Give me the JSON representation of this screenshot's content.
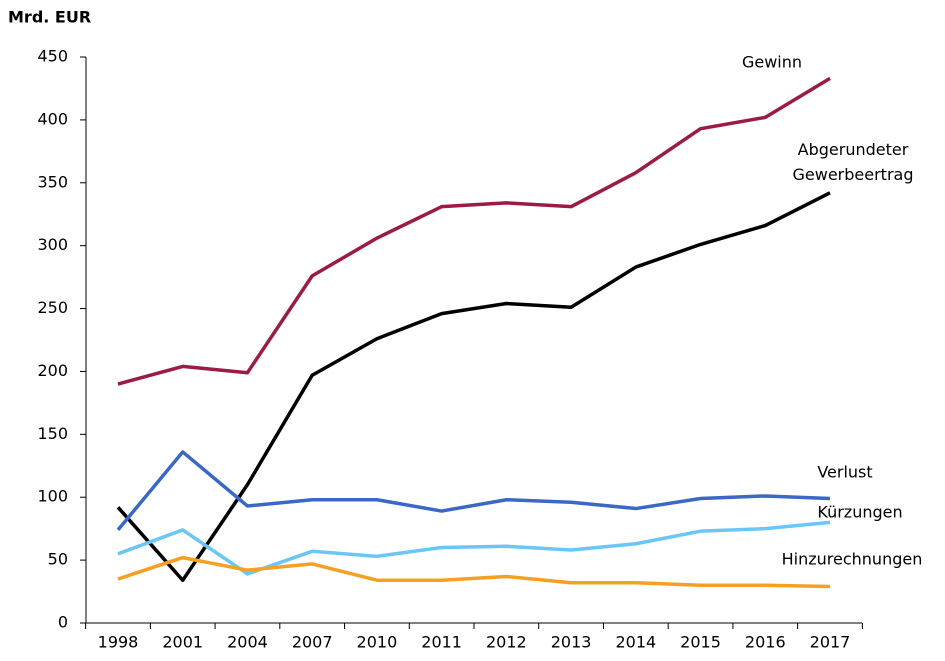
{
  "chart_data": {
    "type": "line",
    "y_label": "Mrd. EUR",
    "categories": [
      "1998",
      "2001",
      "2004",
      "2007",
      "2010",
      "2011",
      "2012",
      "2013",
      "2014",
      "2015",
      "2016",
      "2017"
    ],
    "series": [
      {
        "name": "Gewinn",
        "color": "#9b1b45",
        "values": [
          190,
          204,
          199,
          276,
          306,
          331,
          334,
          331,
          358,
          393,
          402,
          433
        ]
      },
      {
        "name": "Abgerundeter Gewerbeertrag",
        "color": "#000000",
        "values": [
          92,
          34,
          110,
          197,
          226,
          246,
          254,
          251,
          283,
          301,
          316,
          342
        ]
      },
      {
        "name": "Verlust",
        "color": "#3a68c4",
        "values": [
          74,
          136,
          93,
          98,
          98,
          89,
          98,
          96,
          91,
          99,
          101,
          99
        ]
      },
      {
        "name": "Kürzungen",
        "color": "#6ac6f5",
        "values": [
          55,
          74,
          39,
          57,
          53,
          60,
          61,
          58,
          63,
          73,
          75,
          80
        ]
      },
      {
        "name": "Hinzurechnungen",
        "color": "#f5a023",
        "values": [
          35,
          52,
          42,
          47,
          34,
          34,
          37,
          32,
          32,
          30,
          30,
          29
        ]
      }
    ],
    "ylim": [
      0,
      450
    ],
    "yticks": [
      0,
      50,
      100,
      150,
      200,
      250,
      300,
      350,
      400,
      450
    ],
    "grid": false
  }
}
